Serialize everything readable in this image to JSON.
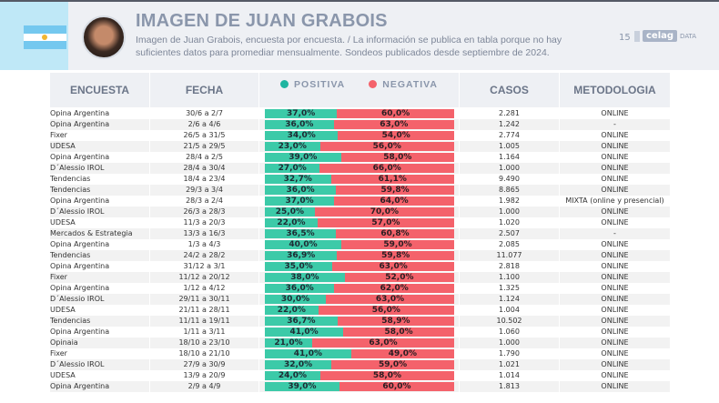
{
  "header": {
    "title": "IMAGEN DE JUAN GRABOIS",
    "subtitle": "Imagen de Juan Grabois, encuesta por encuesta. / La información se publica en tabla porque no hay suficientes datos para promediar mensualmente. Sondeos publicados desde septiembre de 2024.",
    "page_number": "15",
    "logo_text": "celag",
    "logo_suffix": "DATA"
  },
  "colors": {
    "positiva": "#3ccaa8",
    "negativa": "#f4626b",
    "header_bg": "#eef0f4",
    "flag_blue": "#74c8ef"
  },
  "columns": {
    "encuesta": "ENCUESTA",
    "fecha": "FECHA",
    "positiva": "POSITIVA",
    "negativa": "NEGATIVA",
    "casos": "CASOS",
    "metodologia": "METODOLOGIA"
  },
  "chart_data": {
    "type": "bar",
    "stacked": true,
    "orientation": "horizontal",
    "series": [
      {
        "name": "POSITIVA"
      },
      {
        "name": "NEGATIVA"
      }
    ],
    "rows": [
      {
        "encuesta": "Opina Argentina",
        "fecha": "30/6 a 2/7",
        "positiva": 37.0,
        "negativa": 60.0,
        "pos_label": "37,0%",
        "neg_label": "60,0%",
        "casos": "2.281",
        "metodologia": "ONLINE"
      },
      {
        "encuesta": "Opina Argentina",
        "fecha": "2/6 a 4/6",
        "positiva": 36.0,
        "negativa": 63.0,
        "pos_label": "36,0%",
        "neg_label": "63,0%",
        "casos": "1.242",
        "metodologia": "-"
      },
      {
        "encuesta": "Fixer",
        "fecha": "26/5 a 31/5",
        "positiva": 34.0,
        "negativa": 54.0,
        "pos_label": "34,0%",
        "neg_label": "54,0%",
        "casos": "2.774",
        "metodologia": "ONLINE"
      },
      {
        "encuesta": "UDESA",
        "fecha": "21/5 a 29/5",
        "positiva": 23.0,
        "negativa": 56.0,
        "pos_label": "23,0%",
        "neg_label": "56,0%",
        "casos": "1.005",
        "metodologia": "ONLINE"
      },
      {
        "encuesta": "Opina Argentina",
        "fecha": "28/4 a 2/5",
        "positiva": 39.0,
        "negativa": 58.0,
        "pos_label": "39,0%",
        "neg_label": "58,0%",
        "casos": "1.164",
        "metodologia": "ONLINE"
      },
      {
        "encuesta": "D´Alessio IROL",
        "fecha": "28/4 a 30/4",
        "positiva": 27.0,
        "negativa": 66.0,
        "pos_label": "27,0%",
        "neg_label": "66,0%",
        "casos": "1.000",
        "metodologia": "ONLINE"
      },
      {
        "encuesta": "Tendencias",
        "fecha": "18/4 a 23/4",
        "positiva": 32.7,
        "negativa": 61.1,
        "pos_label": "32,7%",
        "neg_label": "61,1%",
        "casos": "9.490",
        "metodologia": "ONLINE"
      },
      {
        "encuesta": "Tendencias",
        "fecha": "29/3 a 3/4",
        "positiva": 36.0,
        "negativa": 59.8,
        "pos_label": "36,0%",
        "neg_label": "59,8%",
        "casos": "8.865",
        "metodologia": "ONLINE"
      },
      {
        "encuesta": "Opina Argentina",
        "fecha": "28/3 a 2/4",
        "positiva": 37.0,
        "negativa": 64.0,
        "pos_label": "37,0%",
        "neg_label": "64,0%",
        "casos": "1.982",
        "metodologia": "MIXTA (online y presencial)"
      },
      {
        "encuesta": "D´Alessio IROL",
        "fecha": "26/3 a 28/3",
        "positiva": 25.0,
        "negativa": 70.0,
        "pos_label": "25,0%",
        "neg_label": "70,0%",
        "casos": "1.000",
        "metodologia": "ONLINE"
      },
      {
        "encuesta": "UDESA",
        "fecha": "11/3 a 20/3",
        "positiva": 22.0,
        "negativa": 57.0,
        "pos_label": "22,0%",
        "neg_label": "57,0%",
        "casos": "1.020",
        "metodologia": "ONLINE"
      },
      {
        "encuesta": "Mercados & Estrategia",
        "fecha": "13/3 a 16/3",
        "positiva": 36.5,
        "negativa": 60.8,
        "pos_label": "36,5%",
        "neg_label": "60,8%",
        "casos": "2.507",
        "metodologia": "-"
      },
      {
        "encuesta": "Opina Argentina",
        "fecha": "1/3 a 4/3",
        "positiva": 40.0,
        "negativa": 59.0,
        "pos_label": "40,0%",
        "neg_label": "59,0%",
        "casos": "2.085",
        "metodologia": "ONLINE"
      },
      {
        "encuesta": "Tendencias",
        "fecha": "24/2 a 28/2",
        "positiva": 36.9,
        "negativa": 59.8,
        "pos_label": "36,9%",
        "neg_label": "59,8%",
        "casos": "11.077",
        "metodologia": "ONLINE"
      },
      {
        "encuesta": "Opina Argentina",
        "fecha": "31/12 a 3/1",
        "positiva": 35.0,
        "negativa": 63.0,
        "pos_label": "35,0%",
        "neg_label": "63,0%",
        "casos": "2.818",
        "metodologia": "ONLINE"
      },
      {
        "encuesta": "Fixer",
        "fecha": "11/12 a 20/12",
        "positiva": 38.0,
        "negativa": 52.0,
        "pos_label": "38,0%",
        "neg_label": "52,0%",
        "casos": "1.100",
        "metodologia": "ONLINE"
      },
      {
        "encuesta": "Opina Argentina",
        "fecha": "1/12 a 4/12",
        "positiva": 36.0,
        "negativa": 62.0,
        "pos_label": "36,0%",
        "neg_label": "62,0%",
        "casos": "1.325",
        "metodologia": "ONLINE"
      },
      {
        "encuesta": "D´Alessio IROL",
        "fecha": "29/11 a 30/11",
        "positiva": 30.0,
        "negativa": 63.0,
        "pos_label": "30,0%",
        "neg_label": "63,0%",
        "casos": "1.124",
        "metodologia": "ONLINE"
      },
      {
        "encuesta": "UDESA",
        "fecha": "21/11 a 28/11",
        "positiva": 22.0,
        "negativa": 56.0,
        "pos_label": "22,0%",
        "neg_label": "56,0%",
        "casos": "1.004",
        "metodologia": "ONLINE"
      },
      {
        "encuesta": "Tendencias",
        "fecha": "11/11 a 19/11",
        "positiva": 36.7,
        "negativa": 58.9,
        "pos_label": "36,7%",
        "neg_label": "58,9%",
        "casos": "10.502",
        "metodologia": "ONLINE"
      },
      {
        "encuesta": "Opina Argentina",
        "fecha": "1/11 a 3/11",
        "positiva": 41.0,
        "negativa": 58.0,
        "pos_label": "41,0%",
        "neg_label": "58,0%",
        "casos": "1.060",
        "metodologia": "ONLINE"
      },
      {
        "encuesta": "Opinaia",
        "fecha": "18/10 a 23/10",
        "positiva": 21.0,
        "negativa": 63.0,
        "pos_label": "21,0%",
        "neg_label": "63,0%",
        "casos": "1.000",
        "metodologia": "ONLINE"
      },
      {
        "encuesta": "Fixer",
        "fecha": "18/10 a 21/10",
        "positiva": 41.0,
        "negativa": 49.0,
        "pos_label": "41,0%",
        "neg_label": "49,0%",
        "casos": "1.790",
        "metodologia": "ONLINE"
      },
      {
        "encuesta": "D´Alessio IROL",
        "fecha": "27/9 a 30/9",
        "positiva": 32.0,
        "negativa": 59.0,
        "pos_label": "32,0%",
        "neg_label": "59,0%",
        "casos": "1.021",
        "metodologia": "ONLINE"
      },
      {
        "encuesta": "UDESA",
        "fecha": "13/9 a 20/9",
        "positiva": 24.0,
        "negativa": 58.0,
        "pos_label": "24,0%",
        "neg_label": "58,0%",
        "casos": "1.014",
        "metodologia": "ONLINE"
      },
      {
        "encuesta": "Opina Argentina",
        "fecha": "2/9 a 4/9",
        "positiva": 39.0,
        "negativa": 60.0,
        "pos_label": "39,0%",
        "neg_label": "60,0%",
        "casos": "1.813",
        "metodologia": "ONLINE"
      }
    ]
  }
}
